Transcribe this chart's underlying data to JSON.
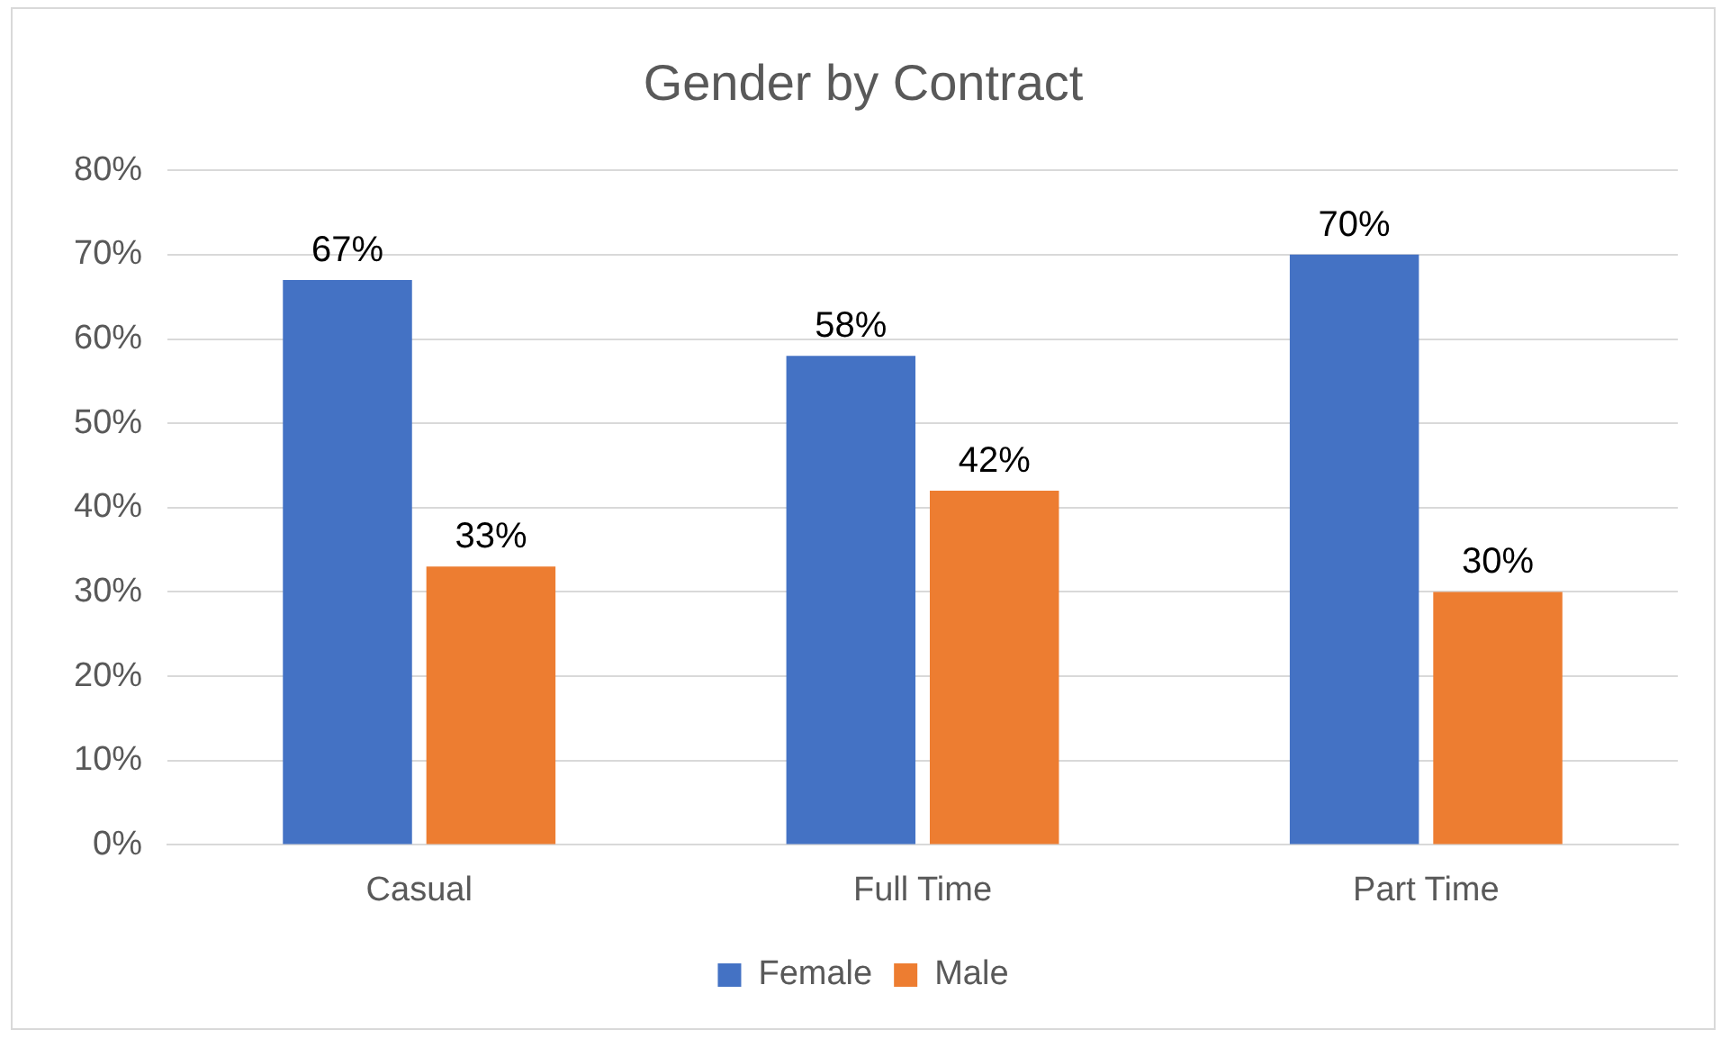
{
  "chart_data": {
    "type": "bar",
    "title": "Gender by Contract",
    "categories": [
      "Casual",
      "Full Time",
      "Part Time"
    ],
    "series": [
      {
        "name": "Female",
        "color": "#4472c4",
        "values": [
          67,
          58,
          70
        ],
        "value_labels": [
          "67%",
          "58%",
          "70%"
        ]
      },
      {
        "name": "Male",
        "color": "#ed7d31",
        "values": [
          33,
          42,
          30
        ],
        "value_labels": [
          "33%",
          "42%",
          "30%"
        ]
      }
    ],
    "ylim": [
      0,
      80
    ],
    "yticks": [
      {
        "value": 0,
        "label": "0%"
      },
      {
        "value": 10,
        "label": "10%"
      },
      {
        "value": 20,
        "label": "20%"
      },
      {
        "value": 30,
        "label": "30%"
      },
      {
        "value": 40,
        "label": "40%"
      },
      {
        "value": 50,
        "label": "50%"
      },
      {
        "value": 60,
        "label": "60%"
      },
      {
        "value": 70,
        "label": "70%"
      },
      {
        "value": 80,
        "label": "80%"
      }
    ],
    "grid": "y",
    "legend": "bottom"
  }
}
